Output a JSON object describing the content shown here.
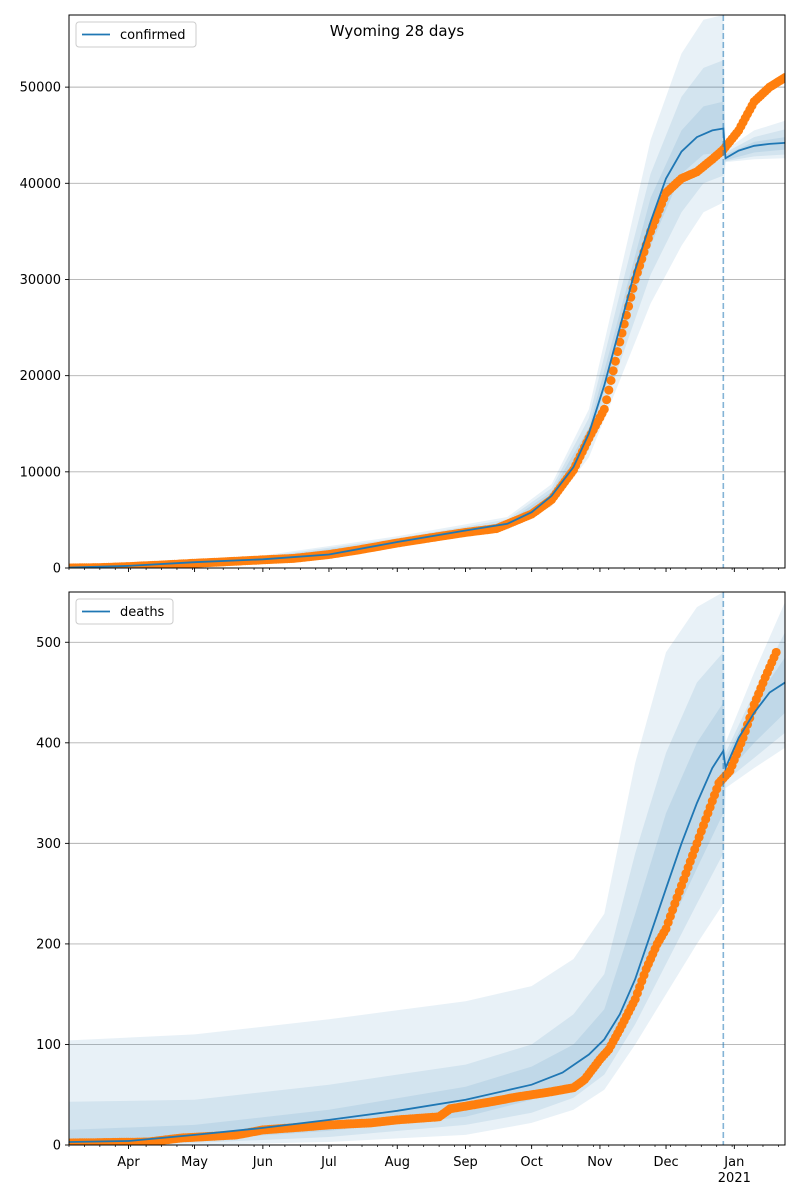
{
  "figure": {
    "title": "Wyoming 28 days"
  },
  "colors": {
    "model": "#1f77b4",
    "observed": "#ff7f0e",
    "band": "#1f77b4",
    "grid": "#b0b0b0"
  },
  "x_ticks": [
    {
      "date": "2020-04-01",
      "label": "Apr"
    },
    {
      "date": "2020-05-01",
      "label": "May"
    },
    {
      "date": "2020-06-01",
      "label": "Jun"
    },
    {
      "date": "2020-07-01",
      "label": "Jul"
    },
    {
      "date": "2020-08-01",
      "label": "Aug"
    },
    {
      "date": "2020-09-01",
      "label": "Sep"
    },
    {
      "date": "2020-10-01",
      "label": "Oct"
    },
    {
      "date": "2020-11-01",
      "label": "Nov"
    },
    {
      "date": "2020-12-01",
      "label": "Dec"
    },
    {
      "date": "2021-01-01",
      "label": "Jan",
      "sublabel": "2021"
    }
  ],
  "chart_data": [
    {
      "type": "line",
      "legend": "confirmed",
      "legend_position": "top-left",
      "grid": "y",
      "xlim": [
        "2020-03-05",
        "2021-01-24"
      ],
      "ylim": [
        0,
        57500
      ],
      "yticks": [
        0,
        10000,
        20000,
        30000,
        40000,
        50000
      ],
      "forecast_start": "2020-12-27",
      "model": {
        "name": "confirmed",
        "x": [
          "2020-03-05",
          "2020-04-01",
          "2020-05-01",
          "2020-06-01",
          "2020-07-01",
          "2020-08-01",
          "2020-09-01",
          "2020-09-20",
          "2020-10-01",
          "2020-10-10",
          "2020-10-20",
          "2020-10-27",
          "2020-11-03",
          "2020-11-10",
          "2020-11-17",
          "2020-11-24",
          "2020-12-01",
          "2020-12-08",
          "2020-12-15",
          "2020-12-22",
          "2020-12-27",
          "2020-12-28",
          "2021-01-03",
          "2021-01-10",
          "2021-01-17",
          "2021-01-24"
        ],
        "y": [
          50,
          220,
          600,
          900,
          1400,
          2700,
          3900,
          4600,
          5800,
          7500,
          10500,
          14000,
          19000,
          25000,
          31000,
          36000,
          40500,
          43300,
          44800,
          45500,
          45700,
          42600,
          43400,
          43900,
          44100,
          44200
        ]
      },
      "bands": [
        {
          "x": [
            "2020-03-05",
            "2020-06-01",
            "2020-08-01",
            "2020-09-20",
            "2020-10-10",
            "2020-10-27",
            "2020-11-10",
            "2020-11-24",
            "2020-12-08",
            "2020-12-18",
            "2020-12-27",
            "2020-12-28",
            "2021-01-10",
            "2021-01-24"
          ],
          "upper": [
            200,
            1300,
            3300,
            5300,
            8700,
            16500,
            30500,
            44500,
            53500,
            57000,
            57500,
            43500,
            45500,
            46500
          ],
          "lower": [
            0,
            600,
            2200,
            4000,
            6400,
            11500,
            19500,
            27500,
            33500,
            37000,
            38000,
            42200,
            42500,
            42600
          ]
        },
        {
          "x": [
            "2020-03-05",
            "2020-06-01",
            "2020-08-01",
            "2020-09-20",
            "2020-10-10",
            "2020-10-27",
            "2020-11-10",
            "2020-11-24",
            "2020-12-08",
            "2020-12-18",
            "2020-12-27",
            "2020-12-28",
            "2021-01-10",
            "2021-01-24"
          ],
          "upper": [
            150,
            1150,
            3100,
            5050,
            8300,
            15600,
            28500,
            41000,
            49000,
            52000,
            52800,
            43200,
            44800,
            45600
          ],
          "lower": [
            10,
            700,
            2350,
            4200,
            6800,
            12300,
            21300,
            30500,
            37000,
            40000,
            40800,
            42300,
            42800,
            43000
          ]
        },
        {
          "x": [
            "2020-03-05",
            "2020-06-01",
            "2020-08-01",
            "2020-09-20",
            "2020-10-10",
            "2020-10-27",
            "2020-11-10",
            "2020-11-24",
            "2020-12-08",
            "2020-12-18",
            "2020-12-27",
            "2020-12-28",
            "2021-01-10",
            "2021-01-24"
          ],
          "upper": [
            110,
            1030,
            2900,
            4800,
            7900,
            14600,
            26500,
            38500,
            45500,
            48000,
            48500,
            43000,
            44300,
            44800
          ],
          "lower": [
            30,
            790,
            2500,
            4450,
            7150,
            13300,
            23500,
            33500,
            41000,
            43000,
            43200,
            42400,
            43200,
            43500
          ]
        }
      ],
      "observed": {
        "name": "observed",
        "x": [
          "2020-03-05",
          "2020-03-20",
          "2020-04-01",
          "2020-04-15",
          "2020-05-01",
          "2020-05-15",
          "2020-06-01",
          "2020-06-15",
          "2020-07-01",
          "2020-07-15",
          "2020-08-01",
          "2020-08-15",
          "2020-09-01",
          "2020-09-15",
          "2020-10-01",
          "2020-10-10",
          "2020-10-20",
          "2020-10-27",
          "2020-11-03",
          "2020-11-10",
          "2020-11-17",
          "2020-11-24",
          "2020-12-01",
          "2020-12-08",
          "2020-12-15",
          "2020-12-22",
          "2020-12-27",
          "2021-01-03",
          "2021-01-10",
          "2021-01-17",
          "2021-01-24"
        ],
        "y": [
          0,
          50,
          150,
          300,
          500,
          650,
          850,
          1000,
          1400,
          1900,
          2600,
          3100,
          3700,
          4100,
          5600,
          7100,
          10200,
          13500,
          16500,
          23500,
          30000,
          35000,
          39000,
          40500,
          41200,
          42500,
          43500,
          45500,
          48500,
          50000,
          51000
        ]
      }
    },
    {
      "type": "line",
      "legend": "deaths",
      "legend_position": "top-left",
      "grid": "y",
      "xlim": [
        "2020-03-05",
        "2021-01-24"
      ],
      "ylim": [
        0,
        550
      ],
      "yticks": [
        0,
        100,
        200,
        300,
        400,
        500
      ],
      "forecast_start": "2020-12-27",
      "model": {
        "name": "deaths",
        "x": [
          "2020-03-05",
          "2020-04-01",
          "2020-05-01",
          "2020-06-01",
          "2020-07-01",
          "2020-08-01",
          "2020-09-01",
          "2020-10-01",
          "2020-10-15",
          "2020-10-27",
          "2020-11-03",
          "2020-11-10",
          "2020-11-17",
          "2020-11-24",
          "2020-12-01",
          "2020-12-08",
          "2020-12-15",
          "2020-12-22",
          "2020-12-27",
          "2020-12-28",
          "2021-01-03",
          "2021-01-10",
          "2021-01-17",
          "2021-01-24"
        ],
        "y": [
          3,
          4,
          10,
          17,
          25,
          34,
          45,
          60,
          72,
          90,
          105,
          130,
          165,
          210,
          255,
          300,
          340,
          375,
          392,
          375,
          405,
          430,
          450,
          460
        ]
      },
      "bands": [
        {
          "x": [
            "2020-03-05",
            "2020-05-01",
            "2020-07-01",
            "2020-09-01",
            "2020-10-01",
            "2020-10-20",
            "2020-11-03",
            "2020-11-17",
            "2020-12-01",
            "2020-12-15",
            "2020-12-27",
            "2020-12-28",
            "2021-01-10",
            "2021-01-24"
          ],
          "upper": [
            104,
            110,
            125,
            143,
            158,
            185,
            230,
            380,
            490,
            535,
            550,
            400,
            470,
            540
          ],
          "lower": [
            0,
            0,
            3,
            10,
            22,
            35,
            55,
            100,
            150,
            200,
            240,
            355,
            375,
            395
          ]
        },
        {
          "x": [
            "2020-03-05",
            "2020-05-01",
            "2020-07-01",
            "2020-09-01",
            "2020-10-01",
            "2020-10-20",
            "2020-11-03",
            "2020-11-17",
            "2020-12-01",
            "2020-12-15",
            "2020-12-27",
            "2020-12-28",
            "2021-01-10",
            "2021-01-24"
          ],
          "upper": [
            43,
            45,
            60,
            80,
            100,
            130,
            170,
            290,
            390,
            460,
            490,
            390,
            450,
            510
          ],
          "lower": [
            0,
            2,
            8,
            20,
            32,
            47,
            70,
            120,
            180,
            240,
            290,
            362,
            385,
            410
          ]
        },
        {
          "x": [
            "2020-03-05",
            "2020-05-01",
            "2020-07-01",
            "2020-09-01",
            "2020-10-01",
            "2020-10-20",
            "2020-11-03",
            "2020-11-17",
            "2020-12-01",
            "2020-12-15",
            "2020-12-27",
            "2020-12-28",
            "2021-01-10",
            "2021-01-24"
          ],
          "upper": [
            15,
            20,
            35,
            58,
            78,
            100,
            135,
            230,
            330,
            400,
            440,
            385,
            440,
            485
          ],
          "lower": [
            0,
            5,
            14,
            28,
            45,
            62,
            85,
            140,
            210,
            275,
            330,
            368,
            400,
            430
          ]
        }
      ],
      "observed": {
        "name": "observed",
        "x": [
          "2020-03-05",
          "2020-04-10",
          "2020-04-25",
          "2020-05-20",
          "2020-06-01",
          "2020-06-20",
          "2020-07-01",
          "2020-07-20",
          "2020-08-01",
          "2020-08-20",
          "2020-08-25",
          "2020-09-10",
          "2020-09-25",
          "2020-10-10",
          "2020-10-20",
          "2020-10-25",
          "2020-11-01",
          "2020-11-05",
          "2020-11-10",
          "2020-11-17",
          "2020-11-22",
          "2020-11-27",
          "2020-12-01",
          "2020-12-05",
          "2020-12-10",
          "2020-12-15",
          "2020-12-20",
          "2020-12-25",
          "2020-12-30",
          "2021-01-05",
          "2021-01-10",
          "2021-01-15",
          "2021-01-20"
        ],
        "y": [
          2,
          3,
          7,
          10,
          15,
          18,
          20,
          22,
          25,
          28,
          36,
          42,
          48,
          53,
          57,
          65,
          85,
          95,
          115,
          145,
          175,
          200,
          215,
          240,
          270,
          300,
          330,
          360,
          372,
          405,
          438,
          465,
          490
        ]
      }
    }
  ]
}
